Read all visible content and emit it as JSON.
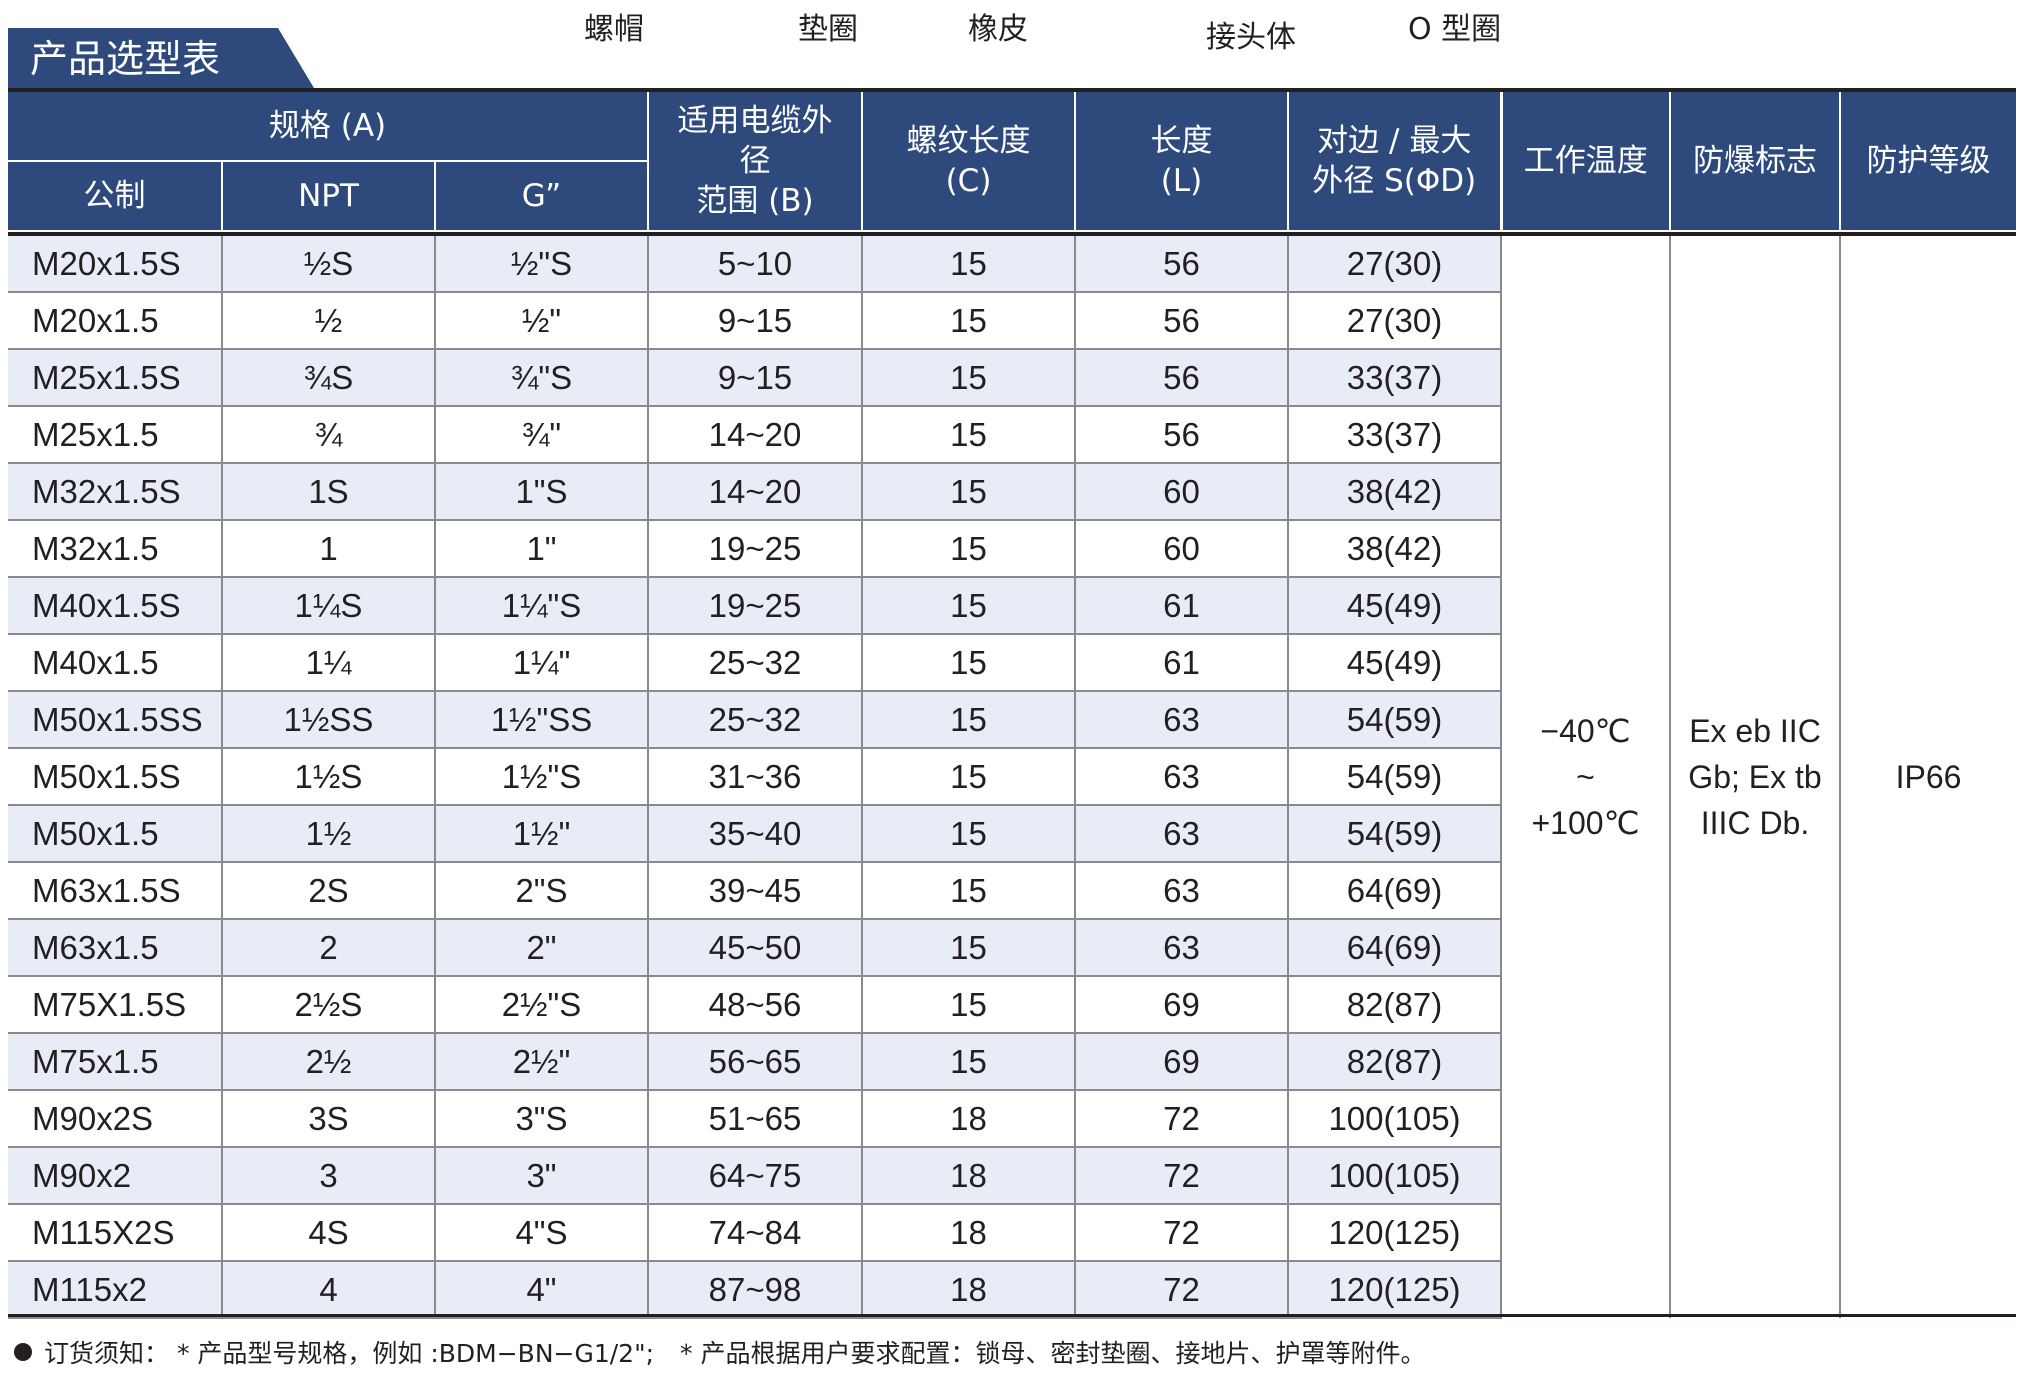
{
  "part_labels": [
    "螺帽",
    "垫圈",
    "橡皮",
    "接头体",
    "O 型圈"
  ],
  "title": "产品选型表",
  "headers": {
    "spec_group": "规格 (A)",
    "metric": "公制",
    "npt": "NPT",
    "g": "G”",
    "cable_line1": "适用电缆外",
    "cable_line2": "径",
    "cable_line3": "范围 (B)",
    "thread_line1": "螺纹长度",
    "thread_line2": "(C)",
    "length_line1": "长度",
    "length_line2": "(L)",
    "size_line1": "对边 / 最大",
    "size_line2": "外径 S(ΦD)",
    "temp": "工作温度",
    "ex": "防爆标志",
    "ip": "防护等级"
  },
  "rows": [
    [
      "M20x1.5S",
      "½S",
      "½\"S",
      "5~10",
      "15",
      "56",
      "27(30)"
    ],
    [
      "M20x1.5",
      "½",
      "½\"",
      "9~15",
      "15",
      "56",
      "27(30)"
    ],
    [
      "M25x1.5S",
      "¾S",
      "¾\"S",
      "9~15",
      "15",
      "56",
      "33(37)"
    ],
    [
      "M25x1.5",
      "¾",
      "¾\"",
      "14~20",
      "15",
      "56",
      "33(37)"
    ],
    [
      "M32x1.5S",
      "1S",
      "1\"S",
      "14~20",
      "15",
      "60",
      "38(42)"
    ],
    [
      "M32x1.5",
      "1",
      "1\"",
      "19~25",
      "15",
      "60",
      "38(42)"
    ],
    [
      "M40x1.5S",
      "1¼S",
      "1¼\"S",
      "19~25",
      "15",
      "61",
      "45(49)"
    ],
    [
      "M40x1.5",
      "1¼",
      "1¼\"",
      "25~32",
      "15",
      "61",
      "45(49)"
    ],
    [
      "M50x1.5SS",
      "1½SS",
      "1½\"SS",
      "25~32",
      "15",
      "63",
      "54(59)"
    ],
    [
      "M50x1.5S",
      "1½S",
      "1½\"S",
      "31~36",
      "15",
      "63",
      "54(59)"
    ],
    [
      "M50x1.5",
      "1½",
      "1½\"",
      "35~40",
      "15",
      "63",
      "54(59)"
    ],
    [
      "M63x1.5S",
      "2S",
      "2\"S",
      "39~45",
      "15",
      "63",
      "64(69)"
    ],
    [
      "M63x1.5",
      "2",
      "2\"",
      "45~50",
      "15",
      "63",
      "64(69)"
    ],
    [
      "M75X1.5S",
      "2½S",
      "2½\"S",
      "48~56",
      "15",
      "69",
      "82(87)"
    ],
    [
      "M75x1.5",
      "2½",
      "2½\"",
      "56~65",
      "15",
      "69",
      "82(87)"
    ],
    [
      "M90x2S",
      "3S",
      "3\"S",
      "51~65",
      "18",
      "72",
      "100(105)"
    ],
    [
      "M90x2",
      "3",
      "3\"",
      "64~75",
      "18",
      "72",
      "100(105)"
    ],
    [
      "M115X2S",
      "4S",
      "4\"S",
      "74~84",
      "18",
      "72",
      "120(125)"
    ],
    [
      "M115x2",
      "4",
      "4\"",
      "87~98",
      "18",
      "72",
      "120(125)"
    ]
  ],
  "merged": {
    "temp_line1": "−40℃",
    "temp_line2": "~",
    "temp_line3": "+100℃",
    "ex_line1": "Ex eb IIC",
    "ex_line2": "Gb; Ex tb",
    "ex_line3": "IIIC Db.",
    "ip": "IP66"
  },
  "footer": {
    "part1": "订货须知：  * 产品型号规格，例如 :BDM−BN−G1/2\";",
    "part2": "* 产品根据用户要求配置：锁母、密封垫圈、接地片、护罩等附件。"
  }
}
